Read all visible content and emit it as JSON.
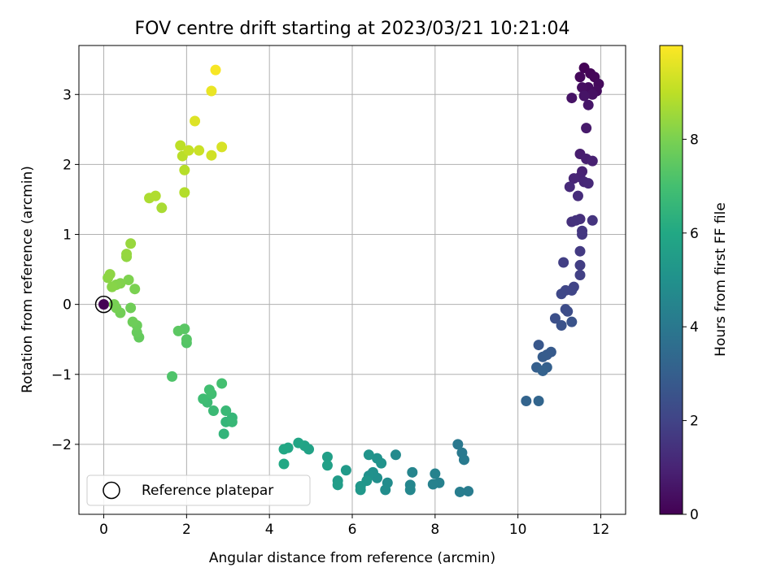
{
  "chart_data": {
    "type": "scatter",
    "title": "FOV centre drift starting at 2023/03/21 10:21:04",
    "xlabel": "Angular distance from reference (arcmin)",
    "ylabel": "Rotation from reference (arcmin)",
    "xlim": [
      -0.6,
      12.6
    ],
    "ylim": [
      -3.0,
      3.7
    ],
    "xticks": [
      0,
      2,
      4,
      6,
      8,
      10,
      12
    ],
    "yticks": [
      -2,
      -1,
      0,
      1,
      2,
      3
    ],
    "xtick_labels": [
      "0",
      "2",
      "4",
      "6",
      "8",
      "10",
      "12"
    ],
    "ytick_labels": [
      "−2",
      "−1",
      "0",
      "1",
      "2",
      "3"
    ],
    "grid": true,
    "legend": {
      "placement": "lower-left",
      "entries": [
        "Reference platepar"
      ]
    },
    "colorbar": {
      "label": "Hours from first FF file",
      "colormap": "viridis",
      "range": [
        0,
        10
      ],
      "ticks": [
        0,
        2,
        4,
        6,
        8
      ],
      "tick_labels": [
        "0",
        "2",
        "4",
        "6",
        "8"
      ]
    },
    "reference_point": {
      "x": 0,
      "y": 0
    },
    "points": [
      {
        "x": 0.0,
        "y": 0.0,
        "h": 0.0
      },
      {
        "x": 11.6,
        "y": 3.38,
        "h": 0.05
      },
      {
        "x": 11.75,
        "y": 3.3,
        "h": 0.1
      },
      {
        "x": 11.85,
        "y": 3.25,
        "h": 0.15
      },
      {
        "x": 11.5,
        "y": 3.25,
        "h": 0.2
      },
      {
        "x": 11.95,
        "y": 3.15,
        "h": 0.25
      },
      {
        "x": 11.9,
        "y": 3.05,
        "h": 0.3
      },
      {
        "x": 11.7,
        "y": 3.1,
        "h": 0.35
      },
      {
        "x": 11.55,
        "y": 3.1,
        "h": 0.4
      },
      {
        "x": 11.8,
        "y": 3.0,
        "h": 0.45
      },
      {
        "x": 11.3,
        "y": 2.95,
        "h": 0.5
      },
      {
        "x": 11.6,
        "y": 2.98,
        "h": 0.55
      },
      {
        "x": 11.7,
        "y": 2.85,
        "h": 0.6
      },
      {
        "x": 11.65,
        "y": 2.52,
        "h": 0.7
      },
      {
        "x": 11.5,
        "y": 2.15,
        "h": 0.8
      },
      {
        "x": 11.65,
        "y": 2.08,
        "h": 0.85
      },
      {
        "x": 11.8,
        "y": 2.05,
        "h": 0.9
      },
      {
        "x": 11.55,
        "y": 1.9,
        "h": 0.95
      },
      {
        "x": 11.5,
        "y": 1.82,
        "h": 1.0
      },
      {
        "x": 11.35,
        "y": 1.8,
        "h": 1.05
      },
      {
        "x": 11.6,
        "y": 1.75,
        "h": 1.1
      },
      {
        "x": 11.7,
        "y": 1.73,
        "h": 1.15
      },
      {
        "x": 11.25,
        "y": 1.68,
        "h": 1.2
      },
      {
        "x": 11.45,
        "y": 1.55,
        "h": 1.25
      },
      {
        "x": 11.5,
        "y": 1.22,
        "h": 1.35
      },
      {
        "x": 11.3,
        "y": 1.18,
        "h": 1.4
      },
      {
        "x": 11.4,
        "y": 1.2,
        "h": 1.45
      },
      {
        "x": 11.8,
        "y": 1.2,
        "h": 1.5
      },
      {
        "x": 11.55,
        "y": 1.05,
        "h": 1.55
      },
      {
        "x": 11.55,
        "y": 1.0,
        "h": 1.6
      },
      {
        "x": 11.5,
        "y": 0.76,
        "h": 1.7
      },
      {
        "x": 11.5,
        "y": 0.56,
        "h": 1.8
      },
      {
        "x": 11.1,
        "y": 0.6,
        "h": 1.85
      },
      {
        "x": 11.5,
        "y": 0.42,
        "h": 1.9
      },
      {
        "x": 11.35,
        "y": 0.25,
        "h": 2.0
      },
      {
        "x": 11.3,
        "y": 0.2,
        "h": 2.05
      },
      {
        "x": 11.15,
        "y": 0.2,
        "h": 2.1
      },
      {
        "x": 11.05,
        "y": 0.15,
        "h": 2.15
      },
      {
        "x": 11.15,
        "y": -0.07,
        "h": 2.3
      },
      {
        "x": 11.2,
        "y": -0.1,
        "h": 2.35
      },
      {
        "x": 10.9,
        "y": -0.2,
        "h": 2.45
      },
      {
        "x": 11.05,
        "y": -0.3,
        "h": 2.5
      },
      {
        "x": 11.3,
        "y": -0.25,
        "h": 2.55
      },
      {
        "x": 10.5,
        "y": -0.58,
        "h": 2.7
      },
      {
        "x": 10.8,
        "y": -0.68,
        "h": 2.8
      },
      {
        "x": 10.7,
        "y": -0.72,
        "h": 2.85
      },
      {
        "x": 10.6,
        "y": -0.75,
        "h": 2.9
      },
      {
        "x": 10.45,
        "y": -0.9,
        "h": 3.0
      },
      {
        "x": 10.7,
        "y": -0.9,
        "h": 3.05
      },
      {
        "x": 10.6,
        "y": -0.95,
        "h": 3.1
      },
      {
        "x": 10.2,
        "y": -1.38,
        "h": 3.2
      },
      {
        "x": 10.5,
        "y": -1.38,
        "h": 3.25
      },
      {
        "x": 8.55,
        "y": -2.0,
        "h": 4.0
      },
      {
        "x": 8.65,
        "y": -2.12,
        "h": 4.05
      },
      {
        "x": 8.7,
        "y": -2.22,
        "h": 4.1
      },
      {
        "x": 8.8,
        "y": -2.67,
        "h": 4.15
      },
      {
        "x": 8.6,
        "y": -2.68,
        "h": 4.2
      },
      {
        "x": 8.1,
        "y": -2.55,
        "h": 4.3
      },
      {
        "x": 7.95,
        "y": -2.57,
        "h": 4.35
      },
      {
        "x": 8.0,
        "y": -2.42,
        "h": 4.4
      },
      {
        "x": 7.45,
        "y": -2.4,
        "h": 4.5
      },
      {
        "x": 7.4,
        "y": -2.58,
        "h": 4.55
      },
      {
        "x": 7.4,
        "y": -2.65,
        "h": 4.6
      },
      {
        "x": 7.05,
        "y": -2.15,
        "h": 4.7
      },
      {
        "x": 6.85,
        "y": -2.55,
        "h": 4.8
      },
      {
        "x": 6.8,
        "y": -2.65,
        "h": 4.85
      },
      {
        "x": 6.6,
        "y": -2.48,
        "h": 4.9
      },
      {
        "x": 6.5,
        "y": -2.4,
        "h": 4.95
      },
      {
        "x": 6.4,
        "y": -2.45,
        "h": 5.0
      },
      {
        "x": 6.6,
        "y": -2.2,
        "h": 5.05
      },
      {
        "x": 6.7,
        "y": -2.27,
        "h": 5.1
      },
      {
        "x": 6.4,
        "y": -2.15,
        "h": 5.15
      },
      {
        "x": 6.35,
        "y": -2.52,
        "h": 5.2
      },
      {
        "x": 6.2,
        "y": -2.6,
        "h": 5.25
      },
      {
        "x": 6.2,
        "y": -2.65,
        "h": 5.3
      },
      {
        "x": 5.85,
        "y": -2.37,
        "h": 5.4
      },
      {
        "x": 5.65,
        "y": -2.52,
        "h": 5.45
      },
      {
        "x": 5.65,
        "y": -2.58,
        "h": 5.5
      },
      {
        "x": 5.4,
        "y": -2.18,
        "h": 5.6
      },
      {
        "x": 5.4,
        "y": -2.3,
        "h": 5.65
      },
      {
        "x": 4.95,
        "y": -2.07,
        "h": 5.75
      },
      {
        "x": 4.85,
        "y": -2.02,
        "h": 5.8
      },
      {
        "x": 4.7,
        "y": -1.98,
        "h": 5.85
      },
      {
        "x": 4.45,
        "y": -2.05,
        "h": 5.9
      },
      {
        "x": 4.35,
        "y": -2.07,
        "h": 5.95
      },
      {
        "x": 4.35,
        "y": -2.28,
        "h": 6.0
      },
      {
        "x": 2.9,
        "y": -1.85,
        "h": 6.5
      },
      {
        "x": 2.95,
        "y": -1.68,
        "h": 6.55
      },
      {
        "x": 3.1,
        "y": -1.62,
        "h": 6.6
      },
      {
        "x": 3.1,
        "y": -1.68,
        "h": 6.65
      },
      {
        "x": 2.95,
        "y": -1.52,
        "h": 6.7
      },
      {
        "x": 2.65,
        "y": -1.52,
        "h": 6.75
      },
      {
        "x": 2.5,
        "y": -1.4,
        "h": 6.8
      },
      {
        "x": 2.4,
        "y": -1.35,
        "h": 6.85
      },
      {
        "x": 2.6,
        "y": -1.28,
        "h": 6.9
      },
      {
        "x": 2.55,
        "y": -1.22,
        "h": 6.95
      },
      {
        "x": 2.85,
        "y": -1.13,
        "h": 7.0
      },
      {
        "x": 1.65,
        "y": -1.03,
        "h": 7.2
      },
      {
        "x": 2.0,
        "y": -0.55,
        "h": 7.3
      },
      {
        "x": 2.0,
        "y": -0.5,
        "h": 7.35
      },
      {
        "x": 1.95,
        "y": -0.35,
        "h": 7.4
      },
      {
        "x": 1.8,
        "y": -0.38,
        "h": 7.45
      },
      {
        "x": 0.85,
        "y": -0.47,
        "h": 7.6
      },
      {
        "x": 0.8,
        "y": -0.4,
        "h": 7.65
      },
      {
        "x": 0.8,
        "y": -0.3,
        "h": 7.7
      },
      {
        "x": 0.7,
        "y": -0.25,
        "h": 7.75
      },
      {
        "x": 0.65,
        "y": -0.05,
        "h": 7.8
      },
      {
        "x": 0.4,
        "y": -0.12,
        "h": 7.85
      },
      {
        "x": 0.3,
        "y": -0.05,
        "h": 7.9
      },
      {
        "x": 0.25,
        "y": 0.0,
        "h": 7.95
      },
      {
        "x": 0.75,
        "y": 0.22,
        "h": 8.0
      },
      {
        "x": 0.6,
        "y": 0.35,
        "h": 8.05
      },
      {
        "x": 0.4,
        "y": 0.3,
        "h": 8.1
      },
      {
        "x": 0.3,
        "y": 0.28,
        "h": 8.15
      },
      {
        "x": 0.2,
        "y": 0.25,
        "h": 8.2
      },
      {
        "x": 0.1,
        "y": 0.38,
        "h": 8.25
      },
      {
        "x": 0.15,
        "y": 0.43,
        "h": 8.3
      },
      {
        "x": 0.55,
        "y": 0.68,
        "h": 8.35
      },
      {
        "x": 0.55,
        "y": 0.72,
        "h": 8.4
      },
      {
        "x": 0.65,
        "y": 0.87,
        "h": 8.45
      },
      {
        "x": 1.4,
        "y": 1.38,
        "h": 8.7
      },
      {
        "x": 1.1,
        "y": 1.52,
        "h": 8.75
      },
      {
        "x": 1.25,
        "y": 1.55,
        "h": 8.8
      },
      {
        "x": 1.95,
        "y": 1.6,
        "h": 8.85
      },
      {
        "x": 1.95,
        "y": 1.92,
        "h": 8.9
      },
      {
        "x": 1.9,
        "y": 2.12,
        "h": 8.95
      },
      {
        "x": 1.85,
        "y": 2.27,
        "h": 9.0
      },
      {
        "x": 2.05,
        "y": 2.2,
        "h": 9.1
      },
      {
        "x": 2.3,
        "y": 2.2,
        "h": 9.2
      },
      {
        "x": 2.6,
        "y": 2.13,
        "h": 9.3
      },
      {
        "x": 2.85,
        "y": 2.25,
        "h": 9.4
      },
      {
        "x": 2.2,
        "y": 2.62,
        "h": 9.5
      },
      {
        "x": 2.6,
        "y": 3.05,
        "h": 9.7
      },
      {
        "x": 2.7,
        "y": 3.35,
        "h": 9.9
      }
    ]
  }
}
